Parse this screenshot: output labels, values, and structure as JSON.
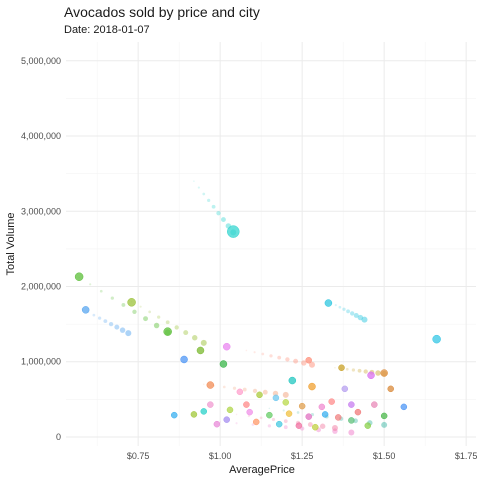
{
  "chart_data": {
    "type": "scatter",
    "title": "Avocados sold by price and city",
    "subtitle": "Date: 2018-01-07",
    "xlabel": "AveragePrice",
    "ylabel": "Total Volume",
    "xlim": [
      0.53,
      1.78
    ],
    "ylim": [
      -120000,
      5250000
    ],
    "x_ticks": [
      0.75,
      1.0,
      1.25,
      1.5,
      1.75
    ],
    "x_tick_labels": [
      "$0.75",
      "$1.00",
      "$1.25",
      "$1.50",
      "$1.75"
    ],
    "y_ticks": [
      0,
      1000000,
      2000000,
      3000000,
      4000000,
      5000000
    ],
    "y_tick_labels": [
      "0",
      "1,000,000",
      "2,000,000",
      "3,000,000",
      "4,000,000",
      "5,000,000"
    ],
    "grid": true,
    "legend": "none",
    "trails": [
      {
        "from": [
          0.92,
          3400000
        ],
        "to": [
          1.04,
          2720000
        ],
        "color": "#35d6d0"
      },
      {
        "from": [
          0.57,
          2120000
        ],
        "to": [
          0.84,
          1390000
        ],
        "color": "#5cbf3a"
      },
      {
        "from": [
          0.58,
          1700000
        ],
        "to": [
          0.72,
          1380000
        ],
        "color": "#5aa7f0"
      },
      {
        "from": [
          0.73,
          1800000
        ],
        "to": [
          0.95,
          1250000
        ],
        "color": "#9bc23a"
      },
      {
        "from": [
          1.34,
          1780000
        ],
        "to": [
          1.44,
          1560000
        ],
        "color": "#2fc7e0"
      },
      {
        "from": [
          1.08,
          1150000
        ],
        "to": [
          1.28,
          960000
        ],
        "color": "#ff8f7a"
      },
      {
        "from": [
          1.35,
          920000
        ],
        "to": [
          1.5,
          840000
        ],
        "color": "#c9a227"
      },
      {
        "from": [
          0.95,
          700000
        ],
        "to": [
          1.2,
          560000
        ],
        "color": "#f2a07a"
      },
      {
        "from": [
          1.0,
          200000
        ],
        "to": [
          1.4,
          60000
        ],
        "color": "#f07ac9"
      },
      {
        "from": [
          1.15,
          380000
        ],
        "to": [
          1.5,
          160000
        ],
        "color": "#3fb8a5"
      },
      {
        "from": [
          1.05,
          300000
        ],
        "to": [
          1.35,
          120000
        ],
        "color": "#f27aa0"
      }
    ],
    "points": [
      {
        "x": 1.04,
        "y": 2730000,
        "size": 6,
        "color": "#35d6d0"
      },
      {
        "x": 0.57,
        "y": 2130000,
        "size": 4,
        "color": "#5cbf3a"
      },
      {
        "x": 0.73,
        "y": 1790000,
        "size": 4,
        "color": "#9bc23a"
      },
      {
        "x": 0.59,
        "y": 1690000,
        "size": 3.5,
        "color": "#5aa7f0"
      },
      {
        "x": 0.84,
        "y": 1400000,
        "size": 4,
        "color": "#5cbf3a"
      },
      {
        "x": 1.33,
        "y": 1780000,
        "size": 3.5,
        "color": "#2fc7e0"
      },
      {
        "x": 1.66,
        "y": 1300000,
        "size": 4,
        "color": "#35c7e6"
      },
      {
        "x": 0.89,
        "y": 1030000,
        "size": 3.5,
        "color": "#4f97f5"
      },
      {
        "x": 0.94,
        "y": 1150000,
        "size": 3.5,
        "color": "#7ab82d"
      },
      {
        "x": 1.01,
        "y": 970000,
        "size": 3.5,
        "color": "#39b54a"
      },
      {
        "x": 1.02,
        "y": 1200000,
        "size": 3.5,
        "color": "#e986f0"
      },
      {
        "x": 1.22,
        "y": 750000,
        "size": 3.5,
        "color": "#22c7c0"
      },
      {
        "x": 1.27,
        "y": 1020000,
        "size": 3,
        "color": "#ff8f7a"
      },
      {
        "x": 1.37,
        "y": 920000,
        "size": 3,
        "color": "#c9a227"
      },
      {
        "x": 1.46,
        "y": 820000,
        "size": 3.5,
        "color": "#d96ff0"
      },
      {
        "x": 1.5,
        "y": 850000,
        "size": 3.5,
        "color": "#e0944a"
      },
      {
        "x": 0.97,
        "y": 690000,
        "size": 3.5,
        "color": "#f28c56"
      },
      {
        "x": 1.28,
        "y": 670000,
        "size": 3.5,
        "color": "#f0a030"
      },
      {
        "x": 1.38,
        "y": 640000,
        "size": 3,
        "color": "#b7a0f0"
      },
      {
        "x": 1.52,
        "y": 640000,
        "size": 3,
        "color": "#d98a3a"
      },
      {
        "x": 0.86,
        "y": 290000,
        "size": 3,
        "color": "#3ab0f0"
      },
      {
        "x": 1.06,
        "y": 600000,
        "size": 3,
        "color": "#ff9fcc"
      },
      {
        "x": 1.12,
        "y": 560000,
        "size": 3,
        "color": "#a9c93a"
      },
      {
        "x": 1.17,
        "y": 520000,
        "size": 3,
        "color": "#6fc8f0"
      },
      {
        "x": 1.08,
        "y": 430000,
        "size": 3,
        "color": "#ff8a8a"
      },
      {
        "x": 0.97,
        "y": 430000,
        "size": 3,
        "color": "#f09ad0"
      },
      {
        "x": 1.2,
        "y": 460000,
        "size": 3,
        "color": "#b9d94a"
      },
      {
        "x": 1.25,
        "y": 410000,
        "size": 3,
        "color": "#e0a050"
      },
      {
        "x": 1.31,
        "y": 400000,
        "size": 3,
        "color": "#f08bd0"
      },
      {
        "x": 1.34,
        "y": 470000,
        "size": 3,
        "color": "#ff8c8c"
      },
      {
        "x": 1.4,
        "y": 430000,
        "size": 3,
        "color": "#c77cf0"
      },
      {
        "x": 1.42,
        "y": 330000,
        "size": 3,
        "color": "#f07a7a"
      },
      {
        "x": 1.47,
        "y": 430000,
        "size": 3,
        "color": "#e88ab8"
      },
      {
        "x": 1.5,
        "y": 280000,
        "size": 3,
        "color": "#4cb84c"
      },
      {
        "x": 1.56,
        "y": 400000,
        "size": 3,
        "color": "#4f97f5"
      },
      {
        "x": 0.92,
        "y": 300000,
        "size": 3,
        "color": "#a2c83a"
      },
      {
        "x": 0.95,
        "y": 340000,
        "size": 3,
        "color": "#2ad2c9"
      },
      {
        "x": 1.03,
        "y": 360000,
        "size": 3,
        "color": "#b0d64a"
      },
      {
        "x": 1.09,
        "y": 330000,
        "size": 3,
        "color": "#f090e8"
      },
      {
        "x": 1.15,
        "y": 290000,
        "size": 3,
        "color": "#66cc66"
      },
      {
        "x": 1.21,
        "y": 310000,
        "size": 3,
        "color": "#f0c040"
      },
      {
        "x": 1.27,
        "y": 270000,
        "size": 3,
        "color": "#e070c0"
      },
      {
        "x": 1.32,
        "y": 300000,
        "size": 3,
        "color": "#3ab0f0"
      },
      {
        "x": 1.36,
        "y": 260000,
        "size": 3,
        "color": "#f08080"
      },
      {
        "x": 1.4,
        "y": 220000,
        "size": 3,
        "color": "#5ec07a"
      },
      {
        "x": 1.02,
        "y": 230000,
        "size": 3,
        "color": "#a58ef0"
      },
      {
        "x": 1.11,
        "y": 200000,
        "size": 3,
        "color": "#ff9a6a"
      },
      {
        "x": 1.18,
        "y": 170000,
        "size": 3,
        "color": "#45c8e0"
      },
      {
        "x": 1.24,
        "y": 150000,
        "size": 3,
        "color": "#f070a0"
      },
      {
        "x": 1.29,
        "y": 130000,
        "size": 3,
        "color": "#c0d040"
      },
      {
        "x": 1.45,
        "y": 150000,
        "size": 3,
        "color": "#8ad04a"
      },
      {
        "x": 0.99,
        "y": 170000,
        "size": 3,
        "color": "#e88ad8"
      }
    ]
  }
}
